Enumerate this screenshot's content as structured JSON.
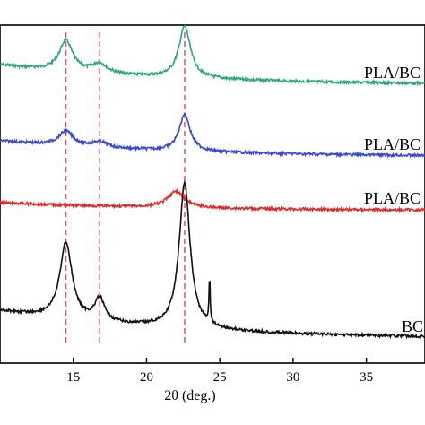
{
  "chart_data": {
    "type": "line",
    "xlabel": "2θ (deg.)",
    "ylabel": "",
    "xlim": [
      10,
      39
    ],
    "x_ticks": [
      15,
      20,
      25,
      30,
      35
    ],
    "grid": false,
    "reference_lines": [
      14.5,
      16.8,
      22.6
    ],
    "reference_line_color": "#e8506a",
    "series": [
      {
        "name": "PLA/BC",
        "color": "#2aa680",
        "baseline": 95,
        "drift": 0.25,
        "peaks": [
          {
            "center": 14.5,
            "height": 0.38,
            "width": 0.55
          },
          {
            "center": 16.8,
            "height": 0.12,
            "width": 0.6
          },
          {
            "center": 22.6,
            "height": 0.64,
            "width": 0.48
          }
        ]
      },
      {
        "name": "PLA/BC",
        "color": "#3a48d6",
        "baseline": 175,
        "drift": 0.2,
        "peaks": [
          {
            "center": 14.5,
            "height": 0.18,
            "width": 0.6
          },
          {
            "center": 16.8,
            "height": 0.07,
            "width": 0.6
          },
          {
            "center": 22.6,
            "height": 0.46,
            "width": 0.45
          }
        ]
      },
      {
        "name": "PLA/BC",
        "color": "#dd2b2b",
        "baseline": 235,
        "drift": 0.1,
        "peaks": [
          {
            "center": 22.0,
            "height": 0.2,
            "width": 0.7
          }
        ]
      },
      {
        "name": "BC",
        "color": "#111111",
        "baseline": 378,
        "drift": 0.35,
        "peaks": [
          {
            "center": 14.5,
            "height": 0.95,
            "width": 0.5
          },
          {
            "center": 16.8,
            "height": 0.28,
            "width": 0.4
          },
          {
            "center": 22.6,
            "height": 1.8,
            "width": 0.45
          },
          {
            "center": 24.3,
            "height": 0.55,
            "width": 0.05
          }
        ]
      }
    ]
  }
}
